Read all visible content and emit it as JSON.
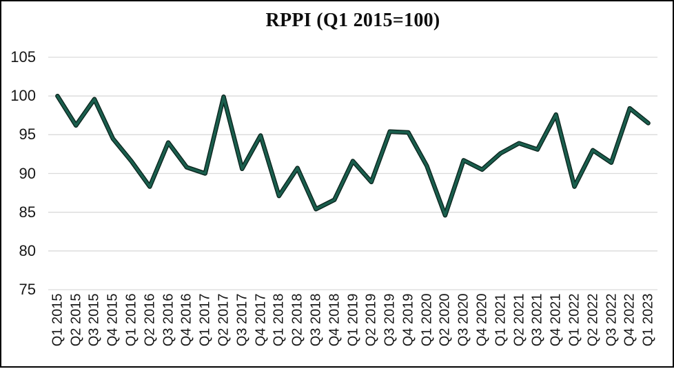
{
  "frame": {
    "background": "#ffffff",
    "border_color": "#000000"
  },
  "chart_data": {
    "type": "line",
    "title": "RPPI (Q1 2015=100)",
    "categories": [
      "Q1 2015",
      "Q2 2015",
      "Q3 2015",
      "Q4 2015",
      "Q1 2016",
      "Q2 2016",
      "Q3 2016",
      "Q4 2016",
      "Q1 2017",
      "Q2 2017",
      "Q3 2017",
      "Q4 2017",
      "Q1 2018",
      "Q2 2018",
      "Q3 2018",
      "Q4 2018",
      "Q1 2019",
      "Q2 2019",
      "Q3 2019",
      "Q4 2019",
      "Q1 2020",
      "Q2 2020",
      "Q3 2020",
      "Q4 2020",
      "Q1 2021",
      "Q2 2021",
      "Q3 2021",
      "Q4 2021",
      "Q1 2022",
      "Q2 2022",
      "Q3 2022",
      "Q4 2022",
      "Q1 2023"
    ],
    "values": [
      100.0,
      96.2,
      99.6,
      94.5,
      91.6,
      88.3,
      94.0,
      90.8,
      90.0,
      99.9,
      90.6,
      94.9,
      87.1,
      90.7,
      85.4,
      86.6,
      91.6,
      88.9,
      95.4,
      95.3,
      91.0,
      84.6,
      91.7,
      90.5,
      92.6,
      93.9,
      93.1,
      97.6,
      88.3,
      93.0,
      91.4,
      98.4,
      96.5
    ],
    "xlabel": "",
    "ylabel": "",
    "ylim": [
      75,
      105
    ],
    "yticks": [
      75,
      80,
      85,
      90,
      95,
      100,
      105
    ],
    "grid": "horizontal",
    "legend": "none",
    "line_color": "#1A5E4D",
    "line_outline_color": "#0A241D",
    "gridline_color": "#DADADA",
    "text_color": "#161616"
  }
}
